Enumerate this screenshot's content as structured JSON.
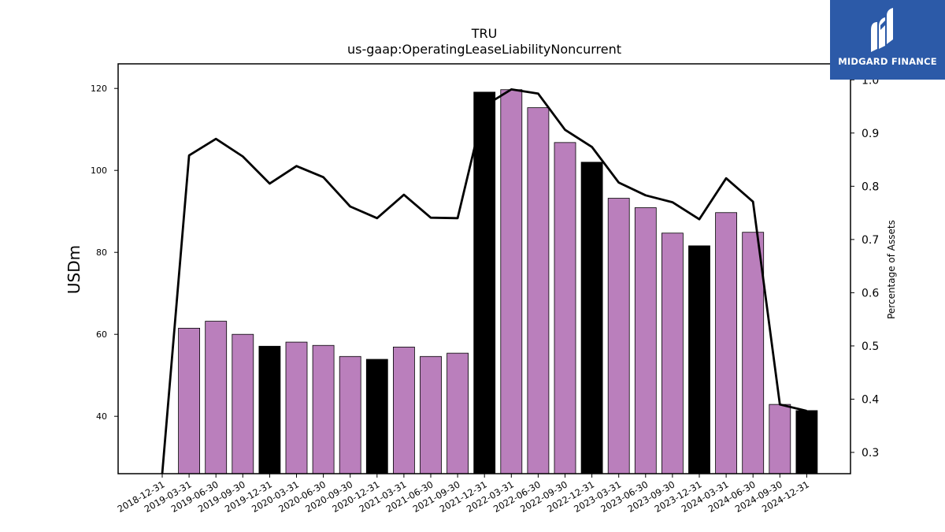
{
  "chart_data": {
    "type": "bar",
    "title": "TRU",
    "subtitle": "us-gaap:OperatingLeaseLiabilityNoncurrent",
    "ylabel": "USDm",
    "y2label": "Percentage of Assets",
    "ylim": [
      26,
      126
    ],
    "y2lim": [
      0.26,
      1.03
    ],
    "yticks": [
      40,
      60,
      80,
      100,
      120
    ],
    "y2ticks": [
      0.3,
      0.4,
      0.5,
      0.6,
      0.7,
      0.8,
      0.9,
      1.0
    ],
    "y2tick_labels": [
      "0.3",
      "0.4",
      "0.5",
      "0.6",
      "0.7",
      "0.8",
      "0.9",
      "1.0"
    ],
    "categories": [
      "2018-12-31",
      "2019-03-31",
      "2019-06-30",
      "2019-09-30",
      "2019-12-31",
      "2020-03-31",
      "2020-06-30",
      "2020-09-30",
      "2020-12-31",
      "2021-03-31",
      "2021-06-30",
      "2021-09-30",
      "2021-12-31",
      "2022-03-31",
      "2022-06-30",
      "2022-09-30",
      "2022-12-31",
      "2023-03-31",
      "2023-06-30",
      "2023-09-30",
      "2023-12-31",
      "2024-03-31",
      "2024-06-30",
      "2024-09-30",
      "2024-12-31"
    ],
    "series": [
      {
        "kind": "bar",
        "values": [
          null,
          61.5,
          63.2,
          60.0,
          57.1,
          58.1,
          57.3,
          54.6,
          53.9,
          56.9,
          54.6,
          55.4,
          119.1,
          119.7,
          115.3,
          106.8,
          102.0,
          93.2,
          90.9,
          84.7,
          81.6,
          89.7,
          84.9,
          42.9,
          41.4
        ],
        "colors": [
          "#ba7fbc",
          "#ba7fbc",
          "#ba7fbc",
          "#ba7fbc",
          "#000000",
          "#ba7fbc",
          "#ba7fbc",
          "#ba7fbc",
          "#000000",
          "#ba7fbc",
          "#ba7fbc",
          "#ba7fbc",
          "#000000",
          "#ba7fbc",
          "#ba7fbc",
          "#ba7fbc",
          "#000000",
          "#ba7fbc",
          "#ba7fbc",
          "#ba7fbc",
          "#000000",
          "#ba7fbc",
          "#ba7fbc",
          "#ba7fbc",
          "#000000"
        ]
      },
      {
        "kind": "line",
        "axis": "right",
        "color": "#000000",
        "values": [
          0.26,
          0.858,
          0.889,
          0.856,
          0.805,
          0.838,
          0.817,
          0.762,
          0.74,
          0.784,
          0.741,
          0.74,
          0.951,
          0.982,
          0.974,
          0.906,
          0.874,
          0.807,
          0.783,
          0.77,
          0.738,
          0.815,
          0.771,
          0.39,
          0.378
        ]
      }
    ],
    "grid": false,
    "legend": "none"
  },
  "brand": {
    "name": "MIDGARD FINANCE",
    "logo_icon": "midgard-logo-icon",
    "background": "#2c5aa8"
  }
}
